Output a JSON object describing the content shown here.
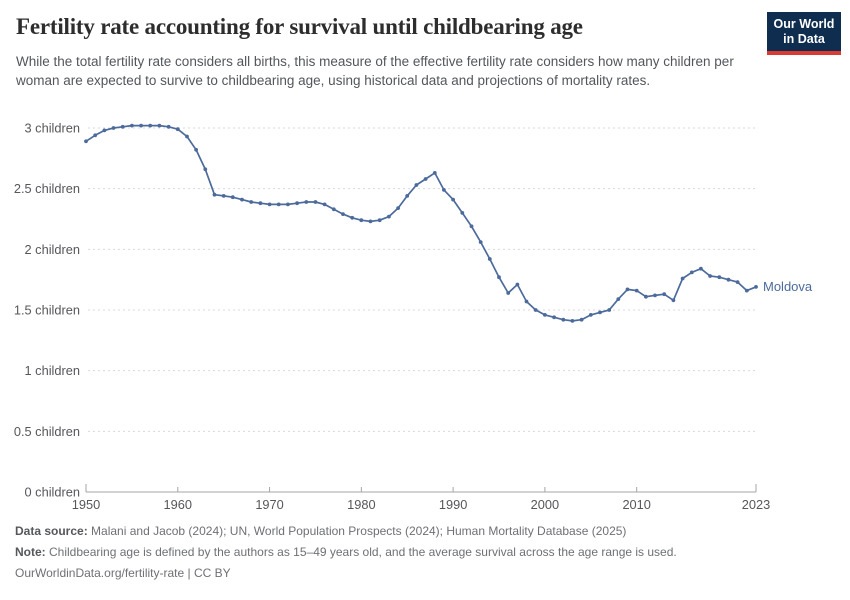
{
  "header": {
    "title": "Fertility rate accounting for survival until childbearing age",
    "subtitle": "While the total fertility rate considers all births, this measure of the effective fertility rate considers how many children per woman are expected to survive to childbearing age, using historical data and projections of mortality rates.",
    "logo": {
      "line1": "Our World",
      "line2": "in Data",
      "bg_color": "#0f2d4f",
      "accent_color": "#dc3a34"
    }
  },
  "chart_data": {
    "type": "line",
    "title": "Fertility rate accounting for survival until childbearing age",
    "entity": "Moldova",
    "xlabel": "",
    "ylabel": "children",
    "xlim": [
      1950,
      2023
    ],
    "ylim": [
      0,
      3
    ],
    "grid": "horizontal dashed",
    "legend_position": "end-of-line label",
    "xticks": [
      1950,
      1960,
      1970,
      1980,
      1990,
      2000,
      2010,
      2023
    ],
    "yticks": [
      {
        "value": 3,
        "label": "3 children"
      },
      {
        "value": 2.5,
        "label": "2.5 children"
      },
      {
        "value": 2,
        "label": "2 children"
      },
      {
        "value": 1.5,
        "label": "1.5 children"
      },
      {
        "value": 1,
        "label": "1 children"
      },
      {
        "value": 0.5,
        "label": "0.5 children"
      },
      {
        "value": 0,
        "label": "0 children"
      }
    ],
    "x": [
      1950,
      1951,
      1952,
      1953,
      1954,
      1955,
      1956,
      1957,
      1958,
      1959,
      1960,
      1961,
      1962,
      1963,
      1964,
      1965,
      1966,
      1967,
      1968,
      1969,
      1970,
      1971,
      1972,
      1973,
      1974,
      1975,
      1976,
      1977,
      1978,
      1979,
      1980,
      1981,
      1982,
      1983,
      1984,
      1985,
      1986,
      1987,
      1988,
      1989,
      1990,
      1991,
      1992,
      1993,
      1994,
      1995,
      1996,
      1997,
      1998,
      1999,
      2000,
      2001,
      2002,
      2003,
      2004,
      2005,
      2006,
      2007,
      2008,
      2009,
      2010,
      2011,
      2012,
      2013,
      2014,
      2015,
      2016,
      2017,
      2018,
      2019,
      2020,
      2021,
      2022,
      2023
    ],
    "series": [
      {
        "name": "Moldova",
        "color": "#4C6A9C",
        "values": [
          2.89,
          2.94,
          2.98,
          3.0,
          3.01,
          3.02,
          3.02,
          3.02,
          3.02,
          3.01,
          2.99,
          2.93,
          2.82,
          2.66,
          2.45,
          2.44,
          2.43,
          2.41,
          2.39,
          2.38,
          2.37,
          2.37,
          2.37,
          2.38,
          2.39,
          2.39,
          2.37,
          2.33,
          2.29,
          2.26,
          2.24,
          2.23,
          2.24,
          2.27,
          2.34,
          2.44,
          2.53,
          2.58,
          2.63,
          2.49,
          2.41,
          2.3,
          2.19,
          2.06,
          1.92,
          1.77,
          1.64,
          1.71,
          1.57,
          1.5,
          1.46,
          1.44,
          1.42,
          1.41,
          1.42,
          1.46,
          1.48,
          1.5,
          1.59,
          1.67,
          1.66,
          1.61,
          1.62,
          1.63,
          1.58,
          1.76,
          1.81,
          1.84,
          1.78,
          1.77,
          1.75,
          1.73,
          1.66,
          1.69
        ]
      }
    ]
  },
  "footer": {
    "sources_label": "Data source:",
    "sources": " Malani and Jacob (2024); UN, World Population Prospects (2024); Human Mortality Database (2025)",
    "note_label": "Note:",
    "note": " Childbearing age is defined by the authors as 15–49 years old, and the average survival across the age range is used.",
    "url_line": "OurWorldinData.org/fertility-rate | CC BY"
  }
}
